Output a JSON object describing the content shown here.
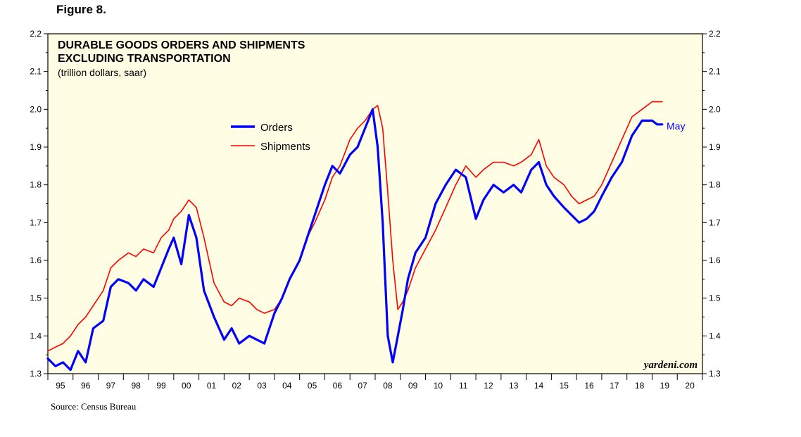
{
  "figure_label": "Figure 8.",
  "source": "Source: Census Bureau",
  "colors": {
    "background": "#FFFDE3",
    "orders": "#0000FF",
    "shipments": "#FF0000",
    "axis": "#000000"
  },
  "chart_data": {
    "type": "line",
    "title": "DURABLE GOODS ORDERS AND SHIPMENTS",
    "title_line2": "EXCLUDING TRANSPORTATION",
    "subtitle": "(trillion dollars, saar)",
    "watermark": "yardeni.com",
    "end_annotation": "May",
    "legend_position": "top-center",
    "grid": false,
    "x_ticks": [
      "95",
      "96",
      "97",
      "98",
      "99",
      "00",
      "01",
      "02",
      "03",
      "04",
      "05",
      "06",
      "07",
      "08",
      "09",
      "10",
      "11",
      "12",
      "13",
      "14",
      "15",
      "16",
      "17",
      "18",
      "19",
      "20"
    ],
    "xlim": [
      1995.0,
      2021.0
    ],
    "ylim": [
      1.3,
      2.2
    ],
    "y_ticks": [
      "1.3",
      "1.4",
      "1.5",
      "1.6",
      "1.7",
      "1.8",
      "1.9",
      "2.0",
      "2.1",
      "2.2"
    ],
    "series": [
      {
        "name": "Orders",
        "color": "#0000FF",
        "x": [
          1995.0,
          1995.3,
          1995.6,
          1995.9,
          1996.2,
          1996.5,
          1996.8,
          1997.2,
          1997.5,
          1997.8,
          1998.2,
          1998.5,
          1998.8,
          1999.2,
          1999.5,
          1999.8,
          2000.0,
          2000.3,
          2000.6,
          2000.9,
          2001.2,
          2001.6,
          2002.0,
          2002.3,
          2002.6,
          2003.0,
          2003.3,
          2003.6,
          2004.0,
          2004.3,
          2004.6,
          2005.0,
          2005.3,
          2005.6,
          2006.0,
          2006.3,
          2006.6,
          2007.0,
          2007.3,
          2007.6,
          2007.9,
          2008.1,
          2008.3,
          2008.5,
          2008.7,
          2008.9,
          2009.1,
          2009.3,
          2009.6,
          2010.0,
          2010.4,
          2010.8,
          2011.2,
          2011.6,
          2012.0,
          2012.3,
          2012.7,
          2013.1,
          2013.5,
          2013.8,
          2014.2,
          2014.5,
          2014.8,
          2015.1,
          2015.5,
          2015.8,
          2016.1,
          2016.4,
          2016.7,
          2017.0,
          2017.4,
          2017.8,
          2018.2,
          2018.6,
          2019.0,
          2019.2,
          2019.4
        ],
        "values": [
          1.34,
          1.32,
          1.33,
          1.31,
          1.36,
          1.33,
          1.42,
          1.44,
          1.53,
          1.55,
          1.54,
          1.52,
          1.55,
          1.53,
          1.58,
          1.63,
          1.66,
          1.59,
          1.72,
          1.66,
          1.52,
          1.45,
          1.39,
          1.42,
          1.38,
          1.4,
          1.39,
          1.38,
          1.46,
          1.5,
          1.55,
          1.6,
          1.66,
          1.72,
          1.8,
          1.85,
          1.83,
          1.88,
          1.9,
          1.95,
          2.0,
          1.9,
          1.7,
          1.4,
          1.33,
          1.4,
          1.47,
          1.55,
          1.62,
          1.66,
          1.75,
          1.8,
          1.84,
          1.82,
          1.71,
          1.76,
          1.8,
          1.78,
          1.8,
          1.78,
          1.84,
          1.86,
          1.8,
          1.77,
          1.74,
          1.72,
          1.7,
          1.71,
          1.73,
          1.77,
          1.82,
          1.86,
          1.93,
          1.97,
          1.97,
          1.96,
          1.96
        ]
      },
      {
        "name": "Shipments",
        "color": "#FF0000",
        "x": [
          1995.0,
          1995.3,
          1995.6,
          1995.9,
          1996.2,
          1996.5,
          1996.8,
          1997.2,
          1997.5,
          1997.8,
          1998.2,
          1998.5,
          1998.8,
          1999.2,
          1999.5,
          1999.8,
          2000.0,
          2000.3,
          2000.6,
          2000.9,
          2001.2,
          2001.6,
          2002.0,
          2002.3,
          2002.6,
          2003.0,
          2003.3,
          2003.6,
          2004.0,
          2004.3,
          2004.6,
          2005.0,
          2005.3,
          2005.6,
          2006.0,
          2006.3,
          2006.6,
          2007.0,
          2007.3,
          2007.6,
          2007.9,
          2008.1,
          2008.3,
          2008.5,
          2008.7,
          2008.9,
          2009.1,
          2009.3,
          2009.6,
          2010.0,
          2010.4,
          2010.8,
          2011.2,
          2011.6,
          2012.0,
          2012.3,
          2012.7,
          2013.1,
          2013.5,
          2013.8,
          2014.2,
          2014.5,
          2014.8,
          2015.1,
          2015.5,
          2015.8,
          2016.1,
          2016.4,
          2016.7,
          2017.0,
          2017.4,
          2017.8,
          2018.2,
          2018.6,
          2019.0,
          2019.2,
          2019.4
        ],
        "values": [
          1.36,
          1.37,
          1.38,
          1.4,
          1.43,
          1.45,
          1.48,
          1.52,
          1.58,
          1.6,
          1.62,
          1.61,
          1.63,
          1.62,
          1.66,
          1.68,
          1.71,
          1.73,
          1.76,
          1.74,
          1.66,
          1.54,
          1.49,
          1.48,
          1.5,
          1.49,
          1.47,
          1.46,
          1.47,
          1.5,
          1.55,
          1.6,
          1.66,
          1.7,
          1.76,
          1.82,
          1.85,
          1.92,
          1.95,
          1.97,
          2.0,
          2.01,
          1.95,
          1.78,
          1.6,
          1.47,
          1.49,
          1.52,
          1.58,
          1.63,
          1.68,
          1.74,
          1.8,
          1.85,
          1.82,
          1.84,
          1.86,
          1.86,
          1.85,
          1.86,
          1.88,
          1.92,
          1.85,
          1.82,
          1.8,
          1.77,
          1.75,
          1.76,
          1.77,
          1.8,
          1.86,
          1.92,
          1.98,
          2.0,
          2.02,
          2.02,
          2.02
        ]
      }
    ]
  }
}
